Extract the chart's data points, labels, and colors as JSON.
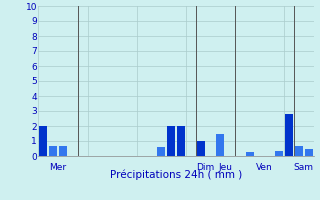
{
  "xlabel": "Précipitations 24h ( mm )",
  "background_color": "#cff0f0",
  "ylim": [
    0,
    10
  ],
  "yticks": [
    0,
    1,
    2,
    3,
    4,
    5,
    6,
    7,
    8,
    9,
    10
  ],
  "grid_color": "#aacccc",
  "tick_color": "#0000bb",
  "bar_color_dark": "#0033cc",
  "bar_color_light": "#3366dd",
  "figsize": [
    3.2,
    2.0
  ],
  "dpi": 100,
  "xlim": [
    0,
    56
  ],
  "day_separators": [
    8,
    32,
    40,
    52
  ],
  "day_labels": [
    {
      "label": "Mer",
      "x": 4
    },
    {
      "label": "Dim",
      "x": 34
    },
    {
      "label": "Jeu",
      "x": 38
    },
    {
      "label": "Ven",
      "x": 46
    },
    {
      "label": "Sam",
      "x": 54
    }
  ],
  "bars": [
    {
      "x": 1,
      "height": 2.0,
      "color": "#0033cc"
    },
    {
      "x": 3,
      "height": 0.7,
      "color": "#3377ee"
    },
    {
      "x": 5,
      "height": 0.65,
      "color": "#3377ee"
    },
    {
      "x": 25,
      "height": 0.6,
      "color": "#3377ee"
    },
    {
      "x": 27,
      "height": 2.0,
      "color": "#0033cc"
    },
    {
      "x": 29,
      "height": 2.0,
      "color": "#0033cc"
    },
    {
      "x": 33,
      "height": 1.0,
      "color": "#0033cc"
    },
    {
      "x": 37,
      "height": 1.5,
      "color": "#3377ee"
    },
    {
      "x": 43,
      "height": 0.3,
      "color": "#3377ee"
    },
    {
      "x": 49,
      "height": 0.35,
      "color": "#3377ee"
    },
    {
      "x": 51,
      "height": 2.8,
      "color": "#0033cc"
    },
    {
      "x": 53,
      "height": 0.65,
      "color": "#3377ee"
    },
    {
      "x": 55,
      "height": 0.5,
      "color": "#3377ee"
    }
  ],
  "bar_width": 1.6
}
